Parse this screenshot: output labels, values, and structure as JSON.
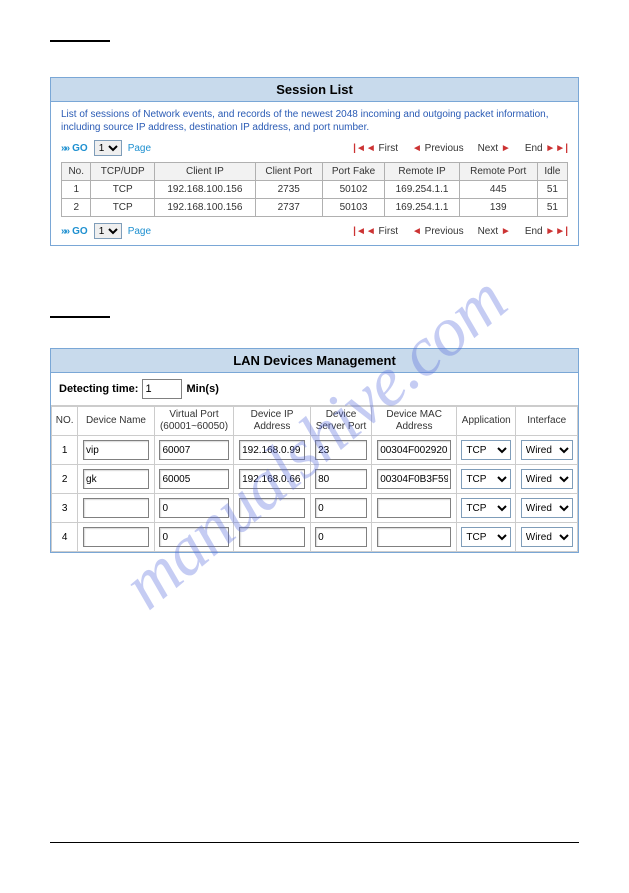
{
  "watermark": "manualshive.com",
  "session": {
    "title": "Session List",
    "description": "List of sessions of Network events, and records of the newest 2048 incoming and outgoing packet information, including source IP address, destination IP address, and port number.",
    "go_label": "GO",
    "page_value": "1",
    "page_label": "Page",
    "nav": {
      "first": "First",
      "previous": "Previous",
      "next": "Next",
      "end": "End"
    },
    "headers": {
      "no": "No.",
      "proto": "TCP/UDP",
      "client_ip": "Client IP",
      "client_port": "Client Port",
      "port_fake": "Port Fake",
      "remote_ip": "Remote IP",
      "remote_port": "Remote Port",
      "idle": "Idle"
    },
    "rows": [
      {
        "no": "1",
        "proto": "TCP",
        "client_ip": "192.168.100.156",
        "client_port": "2735",
        "port_fake": "50102",
        "remote_ip": "169.254.1.1",
        "remote_port": "445",
        "idle": "51"
      },
      {
        "no": "2",
        "proto": "TCP",
        "client_ip": "192.168.100.156",
        "client_port": "2737",
        "port_fake": "50103",
        "remote_ip": "169.254.1.1",
        "remote_port": "139",
        "idle": "51"
      }
    ]
  },
  "lan": {
    "title": "LAN Devices Management",
    "detect_label": "Detecting time:",
    "detect_value": "1",
    "detect_unit": "Min(s)",
    "headers": {
      "no": "NO.",
      "name": "Device Name",
      "vport": "Virtual Port (60001~60050)",
      "ip": "Device IP Address",
      "sport": "Device Server Port",
      "mac": "Device MAC Address",
      "app": "Application",
      "iface": "Interface"
    },
    "rows": [
      {
        "no": "1",
        "name": "vip",
        "vport": "60007",
        "ip": "192.168.0.99",
        "sport": "23",
        "mac": "00304F002920",
        "app": "TCP",
        "iface": "Wired"
      },
      {
        "no": "2",
        "name": "gk",
        "vport": "60005",
        "ip": "192.168.0.66",
        "sport": "80",
        "mac": "00304F0B3F59",
        "app": "TCP",
        "iface": "Wired"
      },
      {
        "no": "3",
        "name": "",
        "vport": "0",
        "ip": "",
        "sport": "0",
        "mac": "",
        "app": "TCP",
        "iface": "Wired"
      },
      {
        "no": "4",
        "name": "",
        "vport": "0",
        "ip": "",
        "sport": "0",
        "mac": "",
        "app": "TCP",
        "iface": "Wired"
      }
    ]
  }
}
